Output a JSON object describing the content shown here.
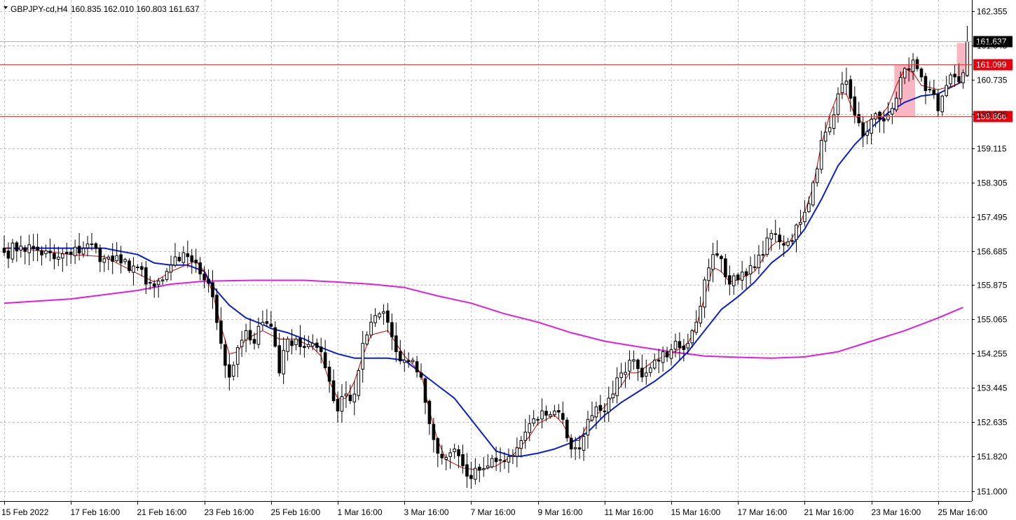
{
  "header": {
    "symbol_line": "GBPJPY-cd,H4",
    "ohlc_text": "160.835 162.010 160.803 161.637"
  },
  "colors": {
    "background": "#ffffff",
    "grid": "#c0c0c0",
    "candle_up_fill": "#ffffff",
    "candle_down_fill": "#000000",
    "candle_outline": "#000000",
    "ma_fast": "#cc0000",
    "ma_mid": "#0a1fd6",
    "ma_slow": "#e01ee0",
    "level_line": "#e03c3c",
    "level_tag": "#e8000b",
    "price_tag": "#000000",
    "zone_fill": "#f7b6c2"
  },
  "chart_data": {
    "type": "candlestick",
    "symbol": "GBPJPY-cd",
    "timeframe": "H4",
    "ylim": [
      150.9,
      162.55
    ],
    "y_ticks": [
      "162.355",
      "161.545",
      "160.735",
      "159.925",
      "159.115",
      "158.305",
      "157.495",
      "156.685",
      "155.875",
      "155.065",
      "154.255",
      "153.445",
      "152.635",
      "151.820",
      "151.000"
    ],
    "x_labels": [
      "15 Feb 2022",
      "17 Feb 16:00",
      "21 Feb 16:00",
      "23 Feb 16:00",
      "25 Feb 16:00",
      "1 Mar 16:00",
      "3 Mar 16:00",
      "7 Mar 16:00",
      "9 Mar 16:00",
      "11 Mar 16:00",
      "15 Mar 16:00",
      "17 Mar 16:00",
      "21 Mar 16:00",
      "23 Mar 16:00",
      "25 Mar 16:00"
    ],
    "x_label_bar_index": [
      0,
      16,
      32,
      48,
      64,
      80,
      96,
      112,
      128,
      144,
      160,
      176,
      192,
      208,
      224
    ],
    "close_anchors": [
      [
        0,
        156.65
      ],
      [
        4,
        156.8
      ],
      [
        8,
        156.7
      ],
      [
        12,
        156.5
      ],
      [
        16,
        156.6
      ],
      [
        20,
        156.85
      ],
      [
        24,
        156.5
      ],
      [
        28,
        156.4
      ],
      [
        32,
        156.3
      ],
      [
        34,
        155.9
      ],
      [
        36,
        155.85
      ],
      [
        38,
        156.0
      ],
      [
        40,
        156.35
      ],
      [
        42,
        156.45
      ],
      [
        44,
        156.55
      ],
      [
        46,
        156.4
      ],
      [
        48,
        156.0
      ],
      [
        50,
        155.6
      ],
      [
        52,
        154.5
      ],
      [
        54,
        153.7
      ],
      [
        56,
        154.4
      ],
      [
        58,
        154.8
      ],
      [
        60,
        154.5
      ],
      [
        62,
        155.0
      ],
      [
        64,
        154.9
      ],
      [
        66,
        153.8
      ],
      [
        68,
        154.6
      ],
      [
        70,
        154.6
      ],
      [
        72,
        154.4
      ],
      [
        74,
        154.5
      ],
      [
        76,
        154.3
      ],
      [
        78,
        153.6
      ],
      [
        80,
        152.9
      ],
      [
        82,
        153.3
      ],
      [
        84,
        153.3
      ],
      [
        86,
        154.5
      ],
      [
        88,
        155.0
      ],
      [
        90,
        155.2
      ],
      [
        92,
        155.0
      ],
      [
        94,
        154.3
      ],
      [
        96,
        154.1
      ],
      [
        98,
        154.1
      ],
      [
        100,
        153.7
      ],
      [
        102,
        152.6
      ],
      [
        104,
        151.9
      ],
      [
        106,
        151.8
      ],
      [
        108,
        152.0
      ],
      [
        110,
        151.6
      ],
      [
        112,
        151.3
      ],
      [
        114,
        151.5
      ],
      [
        116,
        151.6
      ],
      [
        118,
        151.7
      ],
      [
        120,
        151.7
      ],
      [
        122,
        151.85
      ],
      [
        124,
        152.2
      ],
      [
        126,
        152.6
      ],
      [
        128,
        152.7
      ],
      [
        130,
        152.8
      ],
      [
        132,
        152.9
      ],
      [
        134,
        152.7
      ],
      [
        136,
        152.0
      ],
      [
        138,
        152.0
      ],
      [
        140,
        152.7
      ],
      [
        142,
        153.0
      ],
      [
        144,
        152.9
      ],
      [
        146,
        153.3
      ],
      [
        148,
        153.8
      ],
      [
        150,
        154.1
      ],
      [
        152,
        153.9
      ],
      [
        154,
        153.8
      ],
      [
        156,
        154.1
      ],
      [
        158,
        154.3
      ],
      [
        160,
        154.35
      ],
      [
        162,
        154.4
      ],
      [
        164,
        154.5
      ],
      [
        166,
        155.0
      ],
      [
        168,
        156.0
      ],
      [
        170,
        156.6
      ],
      [
        172,
        156.5
      ],
      [
        174,
        155.9
      ],
      [
        176,
        156.0
      ],
      [
        178,
        156.1
      ],
      [
        180,
        156.3
      ],
      [
        182,
        156.6
      ],
      [
        184,
        157.1
      ],
      [
        186,
        156.9
      ],
      [
        188,
        156.9
      ],
      [
        190,
        157.3
      ],
      [
        192,
        157.6
      ],
      [
        194,
        158.3
      ],
      [
        196,
        159.3
      ],
      [
        198,
        159.6
      ],
      [
        200,
        160.4
      ],
      [
        202,
        160.7
      ],
      [
        204,
        159.9
      ],
      [
        206,
        159.4
      ],
      [
        208,
        159.8
      ],
      [
        210,
        159.8
      ],
      [
        212,
        159.9
      ],
      [
        214,
        160.3
      ],
      [
        216,
        161.0
      ],
      [
        218,
        161.2
      ],
      [
        220,
        160.8
      ],
      [
        222,
        160.5
      ],
      [
        224,
        160.0
      ],
      [
        226,
        160.6
      ],
      [
        228,
        160.8
      ],
      [
        230,
        160.9
      ],
      [
        231,
        161.637
      ]
    ],
    "last_candle": {
      "open": 160.835,
      "high": 162.01,
      "low": 160.803,
      "close": 161.637
    },
    "ma_fast_points": [
      [
        0,
        156.75
      ],
      [
        8,
        156.7
      ],
      [
        16,
        156.6
      ],
      [
        24,
        156.55
      ],
      [
        32,
        156.15
      ],
      [
        36,
        155.95
      ],
      [
        40,
        156.2
      ],
      [
        46,
        156.45
      ],
      [
        48,
        156.2
      ],
      [
        50,
        155.7
      ],
      [
        52,
        154.9
      ],
      [
        54,
        154.25
      ],
      [
        56,
        154.3
      ],
      [
        58,
        154.6
      ],
      [
        62,
        154.8
      ],
      [
        64,
        154.7
      ],
      [
        66,
        154.6
      ],
      [
        70,
        154.6
      ],
      [
        74,
        154.4
      ],
      [
        76,
        154.2
      ],
      [
        78,
        153.6
      ],
      [
        80,
        153.2
      ],
      [
        82,
        153.2
      ],
      [
        84,
        153.6
      ],
      [
        86,
        154.2
      ],
      [
        88,
        154.7
      ],
      [
        92,
        154.8
      ],
      [
        94,
        154.5
      ],
      [
        96,
        154.2
      ],
      [
        100,
        153.8
      ],
      [
        102,
        152.9
      ],
      [
        104,
        152.2
      ],
      [
        106,
        151.75
      ],
      [
        110,
        151.55
      ],
      [
        114,
        151.5
      ],
      [
        118,
        151.6
      ],
      [
        122,
        151.85
      ],
      [
        126,
        152.3
      ],
      [
        128,
        152.6
      ],
      [
        132,
        152.8
      ],
      [
        134,
        152.6
      ],
      [
        136,
        152.2
      ],
      [
        138,
        152.2
      ],
      [
        140,
        152.6
      ],
      [
        144,
        153.0
      ],
      [
        148,
        153.5
      ],
      [
        150,
        153.8
      ],
      [
        152,
        153.8
      ],
      [
        156,
        154.1
      ],
      [
        160,
        154.25
      ],
      [
        164,
        154.5
      ],
      [
        166,
        154.9
      ],
      [
        168,
        155.6
      ],
      [
        170,
        156.3
      ],
      [
        172,
        156.2
      ],
      [
        174,
        155.95
      ],
      [
        176,
        156.0
      ],
      [
        180,
        156.2
      ],
      [
        184,
        156.8
      ],
      [
        186,
        156.95
      ],
      [
        188,
        156.85
      ],
      [
        190,
        157.15
      ],
      [
        192,
        157.6
      ],
      [
        194,
        158.2
      ],
      [
        196,
        159.2
      ],
      [
        198,
        159.9
      ],
      [
        200,
        160.4
      ],
      [
        202,
        160.4
      ],
      [
        204,
        159.9
      ],
      [
        206,
        159.7
      ],
      [
        208,
        159.8
      ],
      [
        210,
        159.85
      ],
      [
        212,
        160.1
      ],
      [
        214,
        160.6
      ],
      [
        216,
        161.0
      ],
      [
        218,
        160.9
      ],
      [
        220,
        160.6
      ],
      [
        222,
        160.55
      ],
      [
        224,
        160.5
      ],
      [
        226,
        160.55
      ],
      [
        228,
        160.6
      ],
      [
        230,
        160.7
      ]
    ],
    "ma_mid_points": [
      [
        0,
        156.75
      ],
      [
        16,
        156.75
      ],
      [
        24,
        156.75
      ],
      [
        32,
        156.6
      ],
      [
        36,
        156.4
      ],
      [
        40,
        156.35
      ],
      [
        44,
        156.35
      ],
      [
        48,
        156.2
      ],
      [
        50,
        155.85
      ],
      [
        54,
        155.4
      ],
      [
        58,
        155.1
      ],
      [
        62,
        154.95
      ],
      [
        64,
        154.85
      ],
      [
        68,
        154.75
      ],
      [
        72,
        154.6
      ],
      [
        76,
        154.4
      ],
      [
        80,
        154.25
      ],
      [
        84,
        154.15
      ],
      [
        88,
        154.15
      ],
      [
        92,
        154.15
      ],
      [
        96,
        154.1
      ],
      [
        100,
        153.8
      ],
      [
        104,
        153.5
      ],
      [
        108,
        153.2
      ],
      [
        112,
        152.7
      ],
      [
        116,
        152.2
      ],
      [
        118,
        151.95
      ],
      [
        122,
        151.83
      ],
      [
        124,
        151.83
      ],
      [
        128,
        151.9
      ],
      [
        132,
        152.0
      ],
      [
        136,
        152.15
      ],
      [
        140,
        152.4
      ],
      [
        144,
        152.8
      ],
      [
        148,
        153.1
      ],
      [
        152,
        153.35
      ],
      [
        156,
        153.6
      ],
      [
        160,
        153.9
      ],
      [
        164,
        154.3
      ],
      [
        168,
        154.8
      ],
      [
        172,
        155.3
      ],
      [
        176,
        155.6
      ],
      [
        180,
        155.95
      ],
      [
        184,
        156.4
      ],
      [
        188,
        156.7
      ],
      [
        192,
        157.2
      ],
      [
        196,
        157.9
      ],
      [
        200,
        158.7
      ],
      [
        204,
        159.2
      ],
      [
        208,
        159.6
      ],
      [
        212,
        159.95
      ],
      [
        216,
        160.2
      ],
      [
        220,
        160.35
      ],
      [
        224,
        160.4
      ],
      [
        228,
        160.6
      ],
      [
        230,
        160.7
      ]
    ],
    "ma_slow_points": [
      [
        0,
        155.45
      ],
      [
        16,
        155.55
      ],
      [
        32,
        155.75
      ],
      [
        40,
        155.9
      ],
      [
        48,
        155.97
      ],
      [
        60,
        155.99
      ],
      [
        72,
        155.99
      ],
      [
        80,
        155.95
      ],
      [
        88,
        155.9
      ],
      [
        96,
        155.82
      ],
      [
        104,
        155.62
      ],
      [
        112,
        155.45
      ],
      [
        120,
        155.2
      ],
      [
        128,
        155.0
      ],
      [
        136,
        154.75
      ],
      [
        144,
        154.55
      ],
      [
        152,
        154.42
      ],
      [
        160,
        154.3
      ],
      [
        168,
        154.2
      ],
      [
        176,
        154.17
      ],
      [
        184,
        154.15
      ],
      [
        192,
        154.18
      ],
      [
        200,
        154.3
      ],
      [
        208,
        154.55
      ],
      [
        216,
        154.8
      ],
      [
        224,
        155.1
      ],
      [
        230,
        155.35
      ]
    ],
    "levels": [
      {
        "price": 161.099,
        "label": "161.099"
      },
      {
        "price": 159.866,
        "label": "159.866"
      }
    ],
    "current_price_label": "161.637",
    "zones": [
      {
        "from_bar": 214,
        "to_bar": 218,
        "low": 159.866,
        "high": 161.099
      },
      {
        "from_bar": 229,
        "to_bar": 231,
        "low": 160.8,
        "high": 161.6
      }
    ]
  }
}
